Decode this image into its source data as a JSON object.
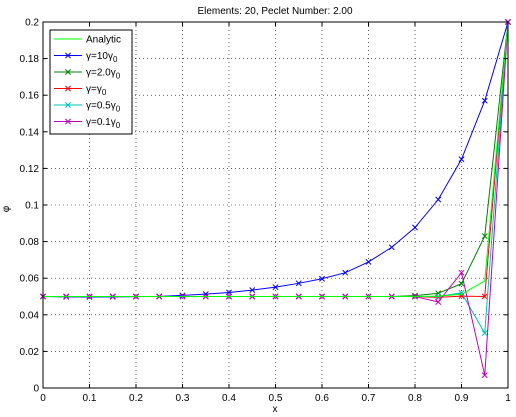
{
  "chart_data": {
    "type": "line",
    "title": "Elements: 20, Peclet Number: 2.00",
    "xlabel": "x",
    "ylabel": "φ",
    "xlim": [
      0,
      1
    ],
    "ylim": [
      0,
      0.2
    ],
    "xticks": [
      "0",
      "0.1",
      "0.2",
      "0.3",
      "0.4",
      "0.5",
      "0.6",
      "0.7",
      "0.8",
      "0.9",
      "1"
    ],
    "yticks": [
      "0",
      "0.02",
      "0.04",
      "0.06",
      "0.08",
      "0.1",
      "0.12",
      "0.14",
      "0.16",
      "0.18",
      "0.2"
    ],
    "grid": true,
    "legend_position": "top-left",
    "x": [
      0,
      0.05,
      0.1,
      0.15,
      0.2,
      0.25,
      0.3,
      0.35,
      0.4,
      0.45,
      0.5,
      0.55,
      0.6,
      0.65,
      0.7,
      0.75,
      0.8,
      0.85,
      0.9,
      0.95,
      1.0
    ],
    "series": [
      {
        "name": "Analytic",
        "legend": {
          "main": "Analytic",
          "sub": ""
        },
        "color": "#00ff00",
        "marker": "none",
        "values": [
          0.05,
          0.05,
          0.05,
          0.05,
          0.05,
          0.05,
          0.05,
          0.05,
          0.05,
          0.05,
          0.05,
          0.05,
          0.05,
          0.05,
          0.05,
          0.05,
          0.05,
          0.0502,
          0.0512,
          0.0585,
          0.2
        ]
      },
      {
        "name": "γ=10γ0",
        "legend": {
          "main": "γ=10γ",
          "sub": "0"
        },
        "color": "#0000ff",
        "marker": "x",
        "values": [
          0.05,
          0.0498,
          0.0497,
          0.0498,
          0.0499,
          0.0501,
          0.0506,
          0.0513,
          0.0522,
          0.0535,
          0.0551,
          0.0572,
          0.0597,
          0.063,
          0.0689,
          0.0769,
          0.0877,
          0.103,
          0.125,
          0.157,
          0.2
        ]
      },
      {
        "name": "γ=2.0γ0",
        "legend": {
          "main": "γ=2.0γ",
          "sub": "0"
        },
        "color": "#008000",
        "marker": "x",
        "values": [
          0.05,
          0.05,
          0.05,
          0.05,
          0.05,
          0.05,
          0.05,
          0.05,
          0.05,
          0.05,
          0.05,
          0.05,
          0.05,
          0.05,
          0.05,
          0.05,
          0.0505,
          0.0518,
          0.057,
          0.083,
          0.2
        ]
      },
      {
        "name": "γ=γ0",
        "legend": {
          "main": "γ=γ",
          "sub": "0"
        },
        "color": "#ff0000",
        "marker": "x",
        "values": [
          0.05,
          0.05,
          0.05,
          0.05,
          0.05,
          0.05,
          0.05,
          0.05,
          0.05,
          0.05,
          0.05,
          0.05,
          0.05,
          0.05,
          0.05,
          0.05,
          0.05,
          0.0495,
          0.0502,
          0.05,
          0.2
        ]
      },
      {
        "name": "γ=0.5γ0",
        "legend": {
          "main": "γ=0.5γ",
          "sub": "0"
        },
        "color": "#00bfbf",
        "marker": "x",
        "values": [
          0.05,
          0.05,
          0.05,
          0.05,
          0.05,
          0.05,
          0.05,
          0.05,
          0.05,
          0.05,
          0.05,
          0.05,
          0.05,
          0.05,
          0.05,
          0.05,
          0.05,
          0.05,
          0.052,
          0.03,
          0.2
        ]
      },
      {
        "name": "γ=0.1γ0",
        "legend": {
          "main": "γ=0.1γ",
          "sub": "0"
        },
        "color": "#bf00bf",
        "marker": "x",
        "values": [
          0.05,
          0.05,
          0.05,
          0.05,
          0.05,
          0.05,
          0.05,
          0.05,
          0.05,
          0.05,
          0.05,
          0.05,
          0.05,
          0.05,
          0.05,
          0.05,
          0.05,
          0.047,
          0.063,
          0.007,
          0.2
        ]
      }
    ]
  }
}
